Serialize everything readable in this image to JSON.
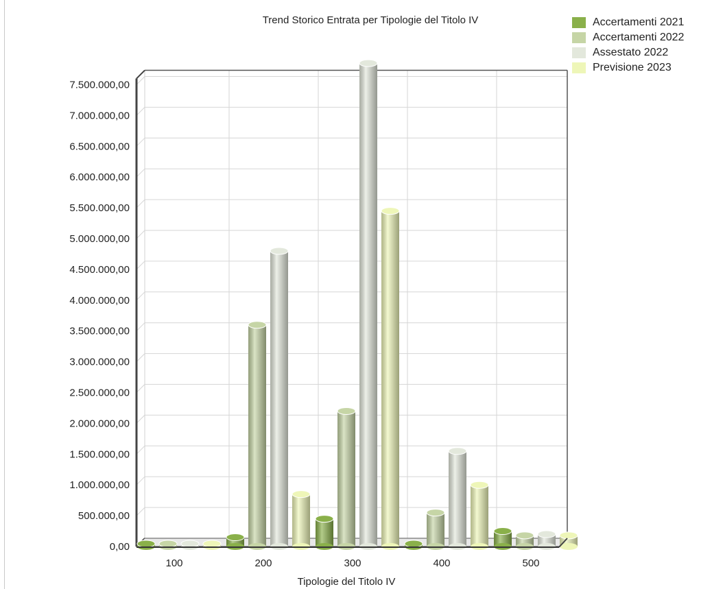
{
  "chart_data": {
    "type": "bar",
    "title": "Trend Storico Entrata per Tipologie del Titolo IV",
    "xlabel": "Tipologie del Titolo IV",
    "ylabel": "",
    "categories": [
      "100",
      "200",
      "300",
      "400",
      "500"
    ],
    "ylim": [
      0,
      7500000
    ],
    "yticks": [
      "0,00",
      "500.000,00",
      "1.000.000,00",
      "1.500.000,00",
      "2.000.000,00",
      "2.500.000,00",
      "3.000.000,00",
      "3.500.000,00",
      "4.000.000,00",
      "4.500.000,00",
      "5.000.000,00",
      "5.500.000,00",
      "6.000.000,00",
      "6.500.000,00",
      "7.000.000,00",
      "7.500.000,00"
    ],
    "series": [
      {
        "name": "Accertamenti 2021",
        "color": "#8ab04a",
        "values": [
          0,
          150000,
          450000,
          0,
          250000
        ]
      },
      {
        "name": "Accertamenti 2022",
        "color": "#c6d5a6",
        "values": [
          0,
          3600000,
          2200000,
          550000,
          180000
        ]
      },
      {
        "name": "Assestato 2022",
        "color": "#e3e8dc",
        "values": [
          0,
          4800000,
          7850000,
          1550000,
          200000
        ]
      },
      {
        "name": "Previsione 2023",
        "color": "#eef6b8",
        "values": [
          0,
          850000,
          5450000,
          1000000,
          180000
        ]
      }
    ],
    "grid": true,
    "legend": "top-right"
  }
}
